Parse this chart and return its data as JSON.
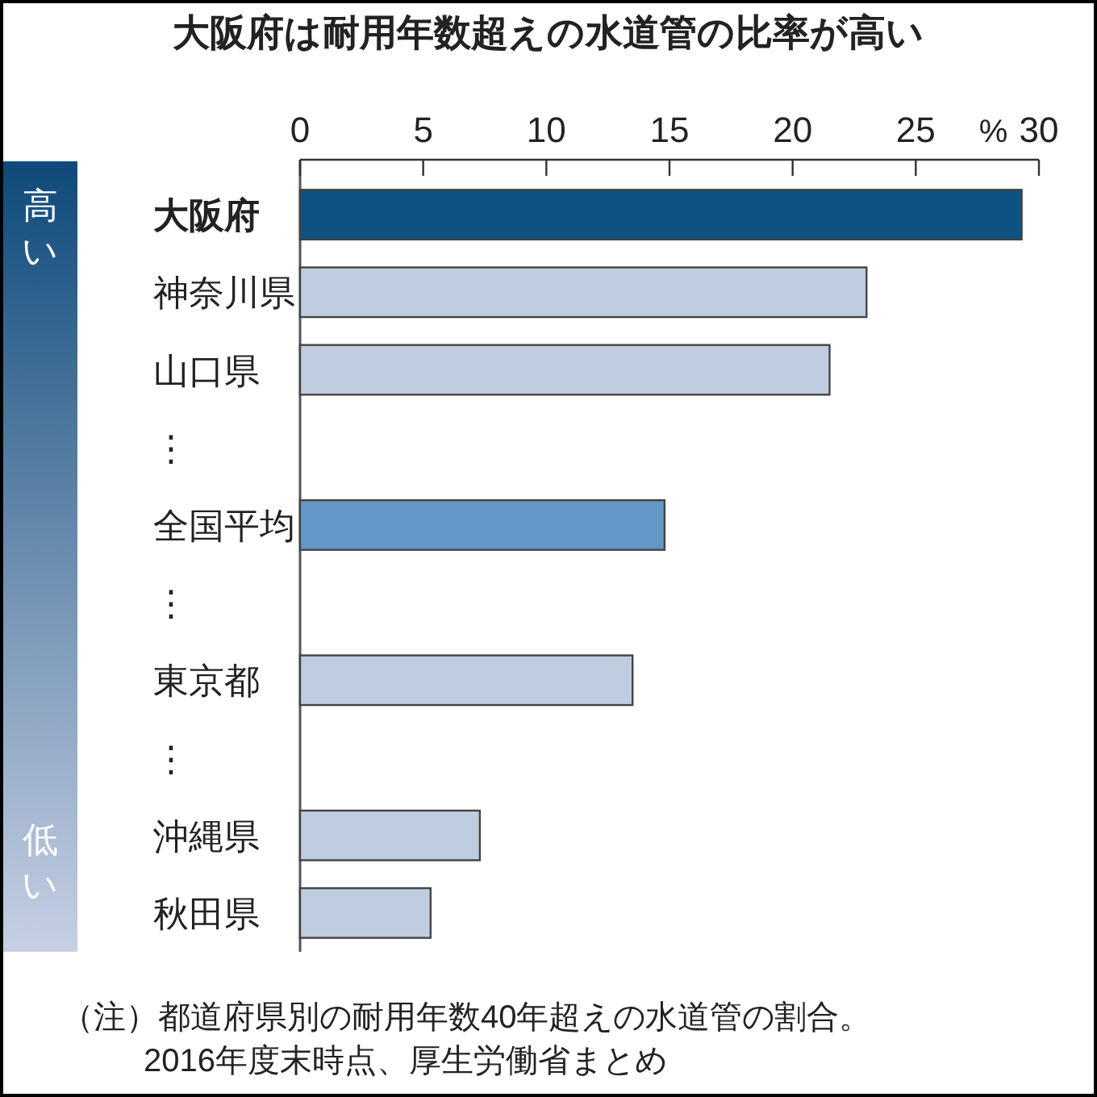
{
  "chart_data": {
    "type": "bar",
    "orientation": "horizontal",
    "title": "大阪府は耐用年数超えの水道管の比率が高い",
    "categories": [
      "大阪府",
      "神奈川県",
      "山口県",
      "⋮",
      "全国平均",
      "⋮",
      "東京都",
      "⋮",
      "沖縄県",
      "秋田県"
    ],
    "values": [
      29.3,
      23.0,
      21.5,
      null,
      14.8,
      null,
      13.5,
      null,
      7.3,
      5.3
    ],
    "colors": [
      "#0e5283",
      "#c0cde0",
      "#c0cde0",
      null,
      "#6496c8",
      null,
      "#c0cde0",
      null,
      "#c0cde0",
      "#c0cde0"
    ],
    "xlim": [
      0,
      30
    ],
    "xticks": [
      0,
      5,
      10,
      15,
      20,
      25,
      30
    ],
    "xlabel": "%",
    "annotations": [
      "高い",
      "低い",
      "（注）都道府県別の耐用年数40年超えの水道管の割合。",
      "2016年度末時点、厚生労働省まとめ"
    ]
  }
}
